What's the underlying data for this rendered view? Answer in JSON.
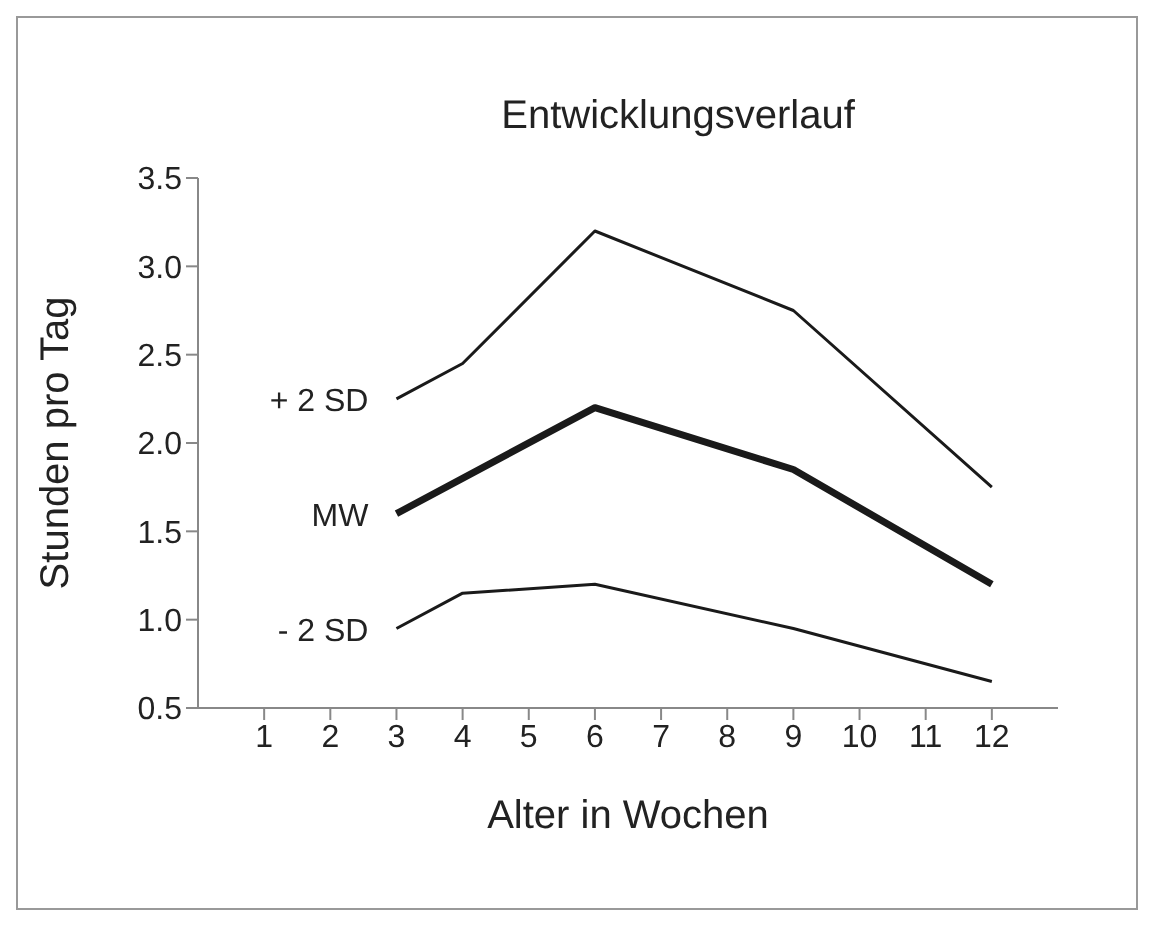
{
  "chart_data": {
    "type": "line",
    "title": "Entwicklungsverlauf",
    "xlabel": "Alter in Wochen",
    "ylabel": "Stunden pro Tag",
    "xlim": [
      0,
      13
    ],
    "xticks": [
      1,
      2,
      3,
      4,
      5,
      6,
      7,
      8,
      9,
      10,
      11,
      12
    ],
    "ylim": [
      0.5,
      3.5
    ],
    "yticks": [
      0.5,
      {
        "value": 1,
        "label": "1.0"
      },
      1.5,
      {
        "value": 2,
        "label": "2.0"
      },
      2.5,
      {
        "value": 3,
        "label": "3.0"
      },
      3.5
    ],
    "grid": false,
    "legend": false,
    "marker": "none",
    "line_style": "solid",
    "series": [
      {
        "name": "+ 2 SD",
        "color": "#1a1a1a",
        "x": [
          3,
          4,
          6,
          9,
          12
        ],
        "values": [
          2.25,
          2.45,
          3.2,
          2.75,
          1.75
        ]
      },
      {
        "name": "MW",
        "color": "#1a1a1a",
        "x": [
          3,
          6,
          9,
          12
        ],
        "values": [
          1.6,
          2.2,
          1.85,
          1.2
        ]
      },
      {
        "name": "- 2 SD",
        "color": "#1a1a1a",
        "x": [
          3,
          4,
          6,
          9,
          12
        ],
        "values": [
          0.95,
          1.15,
          1.2,
          0.95,
          0.65
        ]
      }
    ]
  }
}
